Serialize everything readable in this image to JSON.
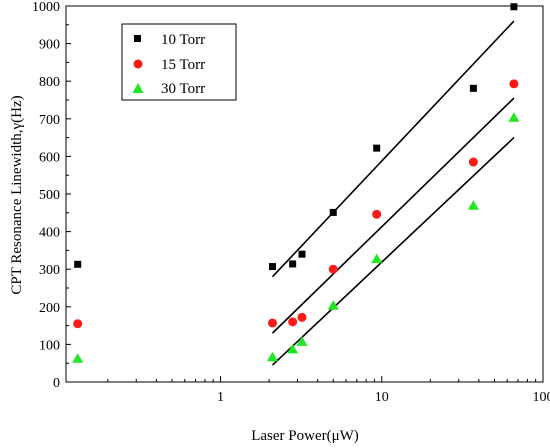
{
  "chart_data": {
    "type": "scatter",
    "xlabel": "Laser Power(μW)",
    "ylabel": "CPT Resonance Linewidth,γ(Hz)",
    "xscale": "log",
    "xlim": [
      0.11,
      100
    ],
    "ylim": [
      0,
      1000
    ],
    "x_ticks": [
      1,
      10,
      100
    ],
    "x_tick_labels": [
      "1",
      "10",
      "100"
    ],
    "y_ticks": [
      0,
      100,
      200,
      300,
      400,
      500,
      600,
      700,
      800,
      900,
      1000
    ],
    "y_tick_labels": [
      "0",
      "100",
      "200",
      "300",
      "400",
      "500",
      "600",
      "700",
      "800",
      "900",
      "1000"
    ],
    "grid": false,
    "legend_position": "top-left",
    "series": [
      {
        "name": "10 Torr",
        "marker": "square",
        "color": "#000000",
        "points": [
          [
            0.13,
            313
          ],
          [
            2.1,
            307
          ],
          [
            2.8,
            314
          ],
          [
            3.2,
            340
          ],
          [
            5.0,
            451
          ],
          [
            9.3,
            622
          ],
          [
            37,
            781
          ],
          [
            66,
            998
          ]
        ],
        "fit_line": [
          [
            2.1,
            280
          ],
          [
            66,
            960
          ]
        ]
      },
      {
        "name": "15 Torr",
        "marker": "circle",
        "color": "#ff1a1a",
        "points": [
          [
            0.13,
            155
          ],
          [
            2.1,
            157
          ],
          [
            2.8,
            160
          ],
          [
            3.2,
            172
          ],
          [
            5.0,
            300
          ],
          [
            9.3,
            446
          ],
          [
            37,
            585
          ],
          [
            66,
            793
          ]
        ],
        "fit_line": [
          [
            2.1,
            130
          ],
          [
            66,
            755
          ]
        ]
      },
      {
        "name": "30 Torr",
        "marker": "triangle",
        "color": "#22e622",
        "points": [
          [
            0.13,
            63
          ],
          [
            2.1,
            67
          ],
          [
            2.8,
            88
          ],
          [
            3.2,
            108
          ],
          [
            5.0,
            204
          ],
          [
            9.3,
            328
          ],
          [
            37,
            470
          ],
          [
            66,
            704
          ]
        ],
        "fit_line": [
          [
            2.1,
            45
          ],
          [
            66,
            650
          ]
        ]
      }
    ]
  }
}
